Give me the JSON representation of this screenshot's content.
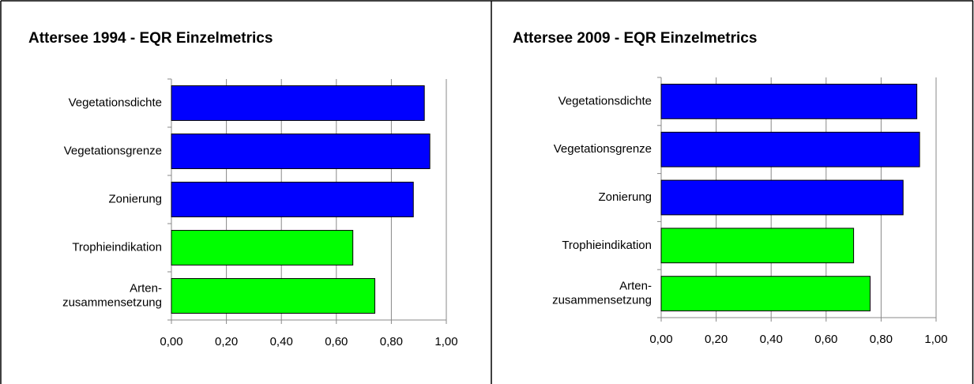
{
  "chart_data": [
    {
      "type": "bar",
      "orientation": "horizontal",
      "title": "Attersee 1994 - EQR Einzelmetrics",
      "categories": [
        "Vegetationsdichte",
        "Vegetationsgrenze",
        "Zonierung",
        "Trophieindikation",
        "Arten-\nzusammensetzung"
      ],
      "values": [
        0.92,
        0.94,
        0.88,
        0.66,
        0.74
      ],
      "colors": [
        "#0000ff",
        "#0000ff",
        "#0000ff",
        "#00ff00",
        "#00ff00"
      ],
      "xlim": [
        0,
        1
      ],
      "xticks": [
        {
          "value": 0,
          "label": "0,00"
        },
        {
          "value": 0.2,
          "label": "0,20"
        },
        {
          "value": 0.4,
          "label": "0,40"
        },
        {
          "value": 0.6,
          "label": "0,60"
        },
        {
          "value": 0.8,
          "label": "0,80"
        },
        {
          "value": 1,
          "label": "1,00"
        }
      ],
      "grid": true
    },
    {
      "type": "bar",
      "orientation": "horizontal",
      "title": "Attersee 2009 - EQR Einzelmetrics",
      "categories": [
        "Vegetationsdichte",
        "Vegetationsgrenze",
        "Zonierung",
        "Trophieindikation",
        "Arten-\nzusammensetzung"
      ],
      "values": [
        0.93,
        0.94,
        0.88,
        0.7,
        0.76
      ],
      "colors": [
        "#0000ff",
        "#0000ff",
        "#0000ff",
        "#00ff00",
        "#00ff00"
      ],
      "xlim": [
        0,
        1
      ],
      "xticks": [
        {
          "value": 0,
          "label": "0,00"
        },
        {
          "value": 0.2,
          "label": "0,20"
        },
        {
          "value": 0.4,
          "label": "0,40"
        },
        {
          "value": 0.6,
          "label": "0,60"
        },
        {
          "value": 0.8,
          "label": "0,80"
        },
        {
          "value": 1,
          "label": "1,00"
        }
      ],
      "grid": true
    }
  ]
}
